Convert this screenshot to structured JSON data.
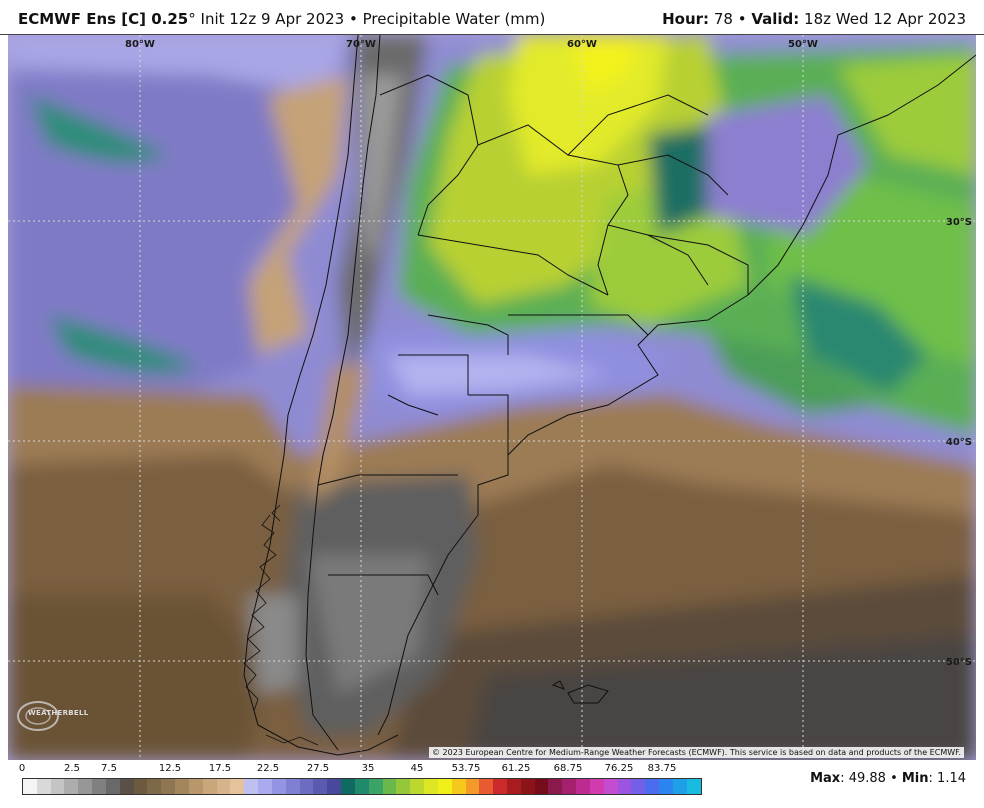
{
  "header": {
    "model": "ECMWF Ens [C] 0.25",
    "deg": "°",
    "init": "Init 12z 9 Apr 2023",
    "bullet": "•",
    "field": "Precipitable Water (mm)",
    "hour_label": "Hour:",
    "hour_value": "78",
    "valid_label": "Valid:",
    "valid_value": "18z Wed 12 Apr 2023"
  },
  "map": {
    "lon_labels": [
      "80°W",
      "70°W",
      "60°W",
      "50°W"
    ],
    "lat_labels": [
      "30°S",
      "40°S",
      "50°S"
    ],
    "credit": "© 2023 European Centre for Medium-Range Weather Forecasts (ECMWF). This service is based on data and products of the ECMWF.",
    "logo_text": "WEATHERBELL"
  },
  "legend": {
    "ticks": [
      "0",
      "2.5",
      "7.5",
      "12.5",
      "17.5",
      "22.5",
      "27.5",
      "35",
      "45",
      "53.75",
      "61.25",
      "68.75",
      "76.25",
      "83.75"
    ],
    "colors": [
      "#f5f5f5",
      "#d9d9d9",
      "#c4c4c4",
      "#adadad",
      "#979797",
      "#808080",
      "#696969",
      "#5a5048",
      "#6b5a40",
      "#7d6847",
      "#8f7652",
      "#a4865c",
      "#b8986a",
      "#c9a77a",
      "#d6b48b",
      "#e4c39c",
      "#c0c0f0",
      "#aaaaf0",
      "#9494e4",
      "#8080d2",
      "#6c6cc0",
      "#5a5aae",
      "#48489c",
      "#0f6b62",
      "#1f8a6c",
      "#3aa366",
      "#68b84a",
      "#94c83a",
      "#bcd82e",
      "#dce622",
      "#f0f018",
      "#f7c81c",
      "#f39a28",
      "#e85a30",
      "#cc2a2a",
      "#a81c20",
      "#8a1418",
      "#740c1a",
      "#8a1a4c",
      "#a4206e",
      "#bc2c90",
      "#d23ab0",
      "#c44cd0",
      "#9c54e0",
      "#7460e8",
      "#4c6cf0",
      "#2c84f0",
      "#1ea0e8",
      "#18bce0"
    ],
    "max_label": "Max",
    "max_value": "49.88",
    "min_label": "Min",
    "min_value": "1.14"
  }
}
